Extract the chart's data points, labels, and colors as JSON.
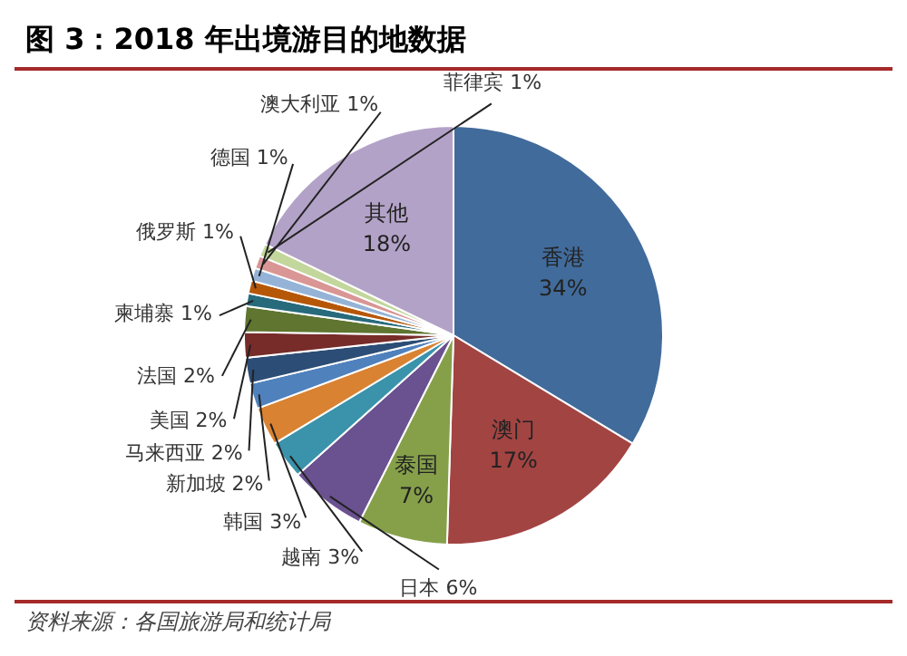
{
  "chart_data": {
    "type": "pie",
    "title": "图 3：2018 年出境游目的地数据",
    "categories": [
      "香港",
      "澳门",
      "泰国",
      "日本",
      "越南",
      "韩国",
      "新加坡",
      "马来西亚",
      "美国",
      "法国",
      "柬埔寨",
      "俄罗斯",
      "德国",
      "澳大利亚",
      "菲律宾",
      "其他"
    ],
    "values": [
      34,
      17,
      7,
      6,
      3,
      3,
      2,
      2,
      2,
      2,
      1,
      1,
      1,
      1,
      1,
      18
    ],
    "value_labels": [
      "34%",
      "17%",
      "7%",
      "6%",
      "3%",
      "3%",
      "2%",
      "2%",
      "2%",
      "2%",
      "1%",
      "1%",
      "1%",
      "1%",
      "1%",
      "18%"
    ],
    "colors": [
      "#416b9b",
      "#a24442",
      "#86a04a",
      "#6a5190",
      "#3a93aa",
      "#d98232",
      "#4f81bd",
      "#2c4d75",
      "#772c2a",
      "#5f7530",
      "#276a7c",
      "#b65708",
      "#95b3d7",
      "#d99694",
      "#c3d69b",
      "#b3a2c7"
    ],
    "annotations": [
      "资料来源：各国旅游局和统计局"
    ]
  }
}
